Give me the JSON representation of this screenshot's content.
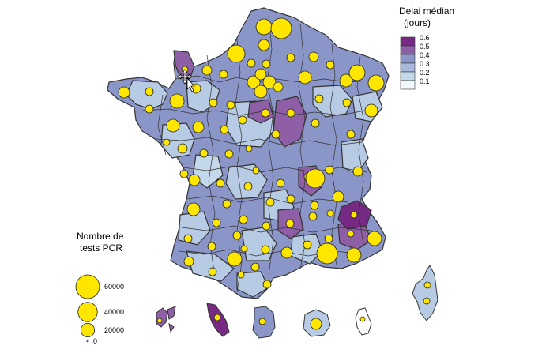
{
  "legend_delay": {
    "title_line1": "Delai médian",
    "title_line2": "(jours)",
    "classes": [
      {
        "label": "0.6",
        "color": "#762a83"
      },
      {
        "label": "0.5",
        "color": "#8e5fa6"
      },
      {
        "label": "0.4",
        "color": "#8a96c8"
      },
      {
        "label": "0.3",
        "color": "#a7b8da"
      },
      {
        "label": "0.2",
        "color": "#c3d8ea"
      },
      {
        "label": "0.1",
        "color": "#f2f8fc"
      }
    ]
  },
  "legend_tests": {
    "title_line1": "Nombre de",
    "title_line2": "tests PCR",
    "bubble_color": "#ffe600",
    "sizes": [
      {
        "label": "60000",
        "value": 60000
      },
      {
        "label": "40000",
        "value": 40000
      },
      {
        "label": "20000",
        "value": 20000
      },
      {
        "label": "0",
        "value": 0
      }
    ]
  },
  "colors": {
    "border": "#333333",
    "bubble": "#ffe600",
    "bubble_stroke": "#222222"
  },
  "cursor_icon": "move-cursor-icon"
}
